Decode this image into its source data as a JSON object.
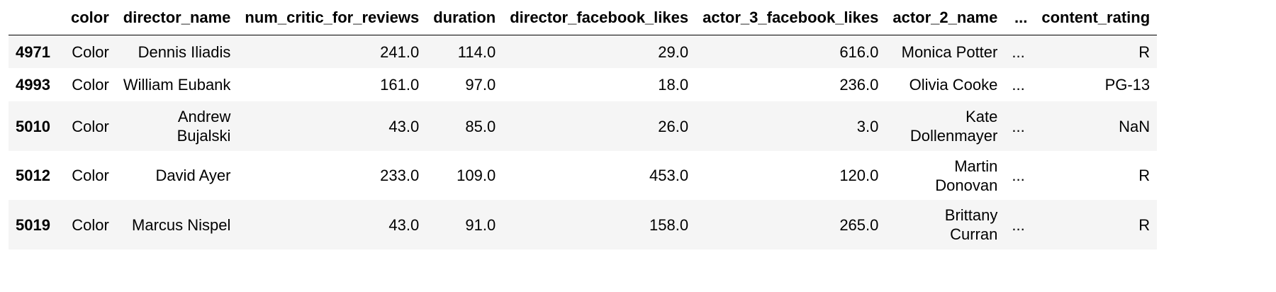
{
  "table": {
    "columns": [
      "color",
      "director_name",
      "num_critic_for_reviews",
      "duration",
      "director_facebook_likes",
      "actor_3_facebook_likes",
      "actor_2_name",
      "...",
      "content_rating"
    ],
    "rows": [
      {
        "index": "4971",
        "color": "Color",
        "director_name": "Dennis Iliadis",
        "num_critic_for_reviews": "241.0",
        "duration": "114.0",
        "director_facebook_likes": "29.0",
        "actor_3_facebook_likes": "616.0",
        "actor_2_name": "Monica Potter",
        "ellipsis": "...",
        "content_rating": "R"
      },
      {
        "index": "4993",
        "color": "Color",
        "director_name": "William Eubank",
        "num_critic_for_reviews": "161.0",
        "duration": "97.0",
        "director_facebook_likes": "18.0",
        "actor_3_facebook_likes": "236.0",
        "actor_2_name": "Olivia Cooke",
        "ellipsis": "...",
        "content_rating": "PG-13"
      },
      {
        "index": "5010",
        "color": "Color",
        "director_name": "Andrew\nBujalski",
        "num_critic_for_reviews": "43.0",
        "duration": "85.0",
        "director_facebook_likes": "26.0",
        "actor_3_facebook_likes": "3.0",
        "actor_2_name": "Kate\nDollenmayer",
        "ellipsis": "...",
        "content_rating": "NaN"
      },
      {
        "index": "5012",
        "color": "Color",
        "director_name": "David Ayer",
        "num_critic_for_reviews": "233.0",
        "duration": "109.0",
        "director_facebook_likes": "453.0",
        "actor_3_facebook_likes": "120.0",
        "actor_2_name": "Martin\nDonovan",
        "ellipsis": "...",
        "content_rating": "R"
      },
      {
        "index": "5019",
        "color": "Color",
        "director_name": "Marcus Nispel",
        "num_critic_for_reviews": "43.0",
        "duration": "91.0",
        "director_facebook_likes": "158.0",
        "actor_3_facebook_likes": "265.0",
        "actor_2_name": "Brittany\nCurran",
        "ellipsis": "...",
        "content_rating": "R"
      }
    ]
  }
}
